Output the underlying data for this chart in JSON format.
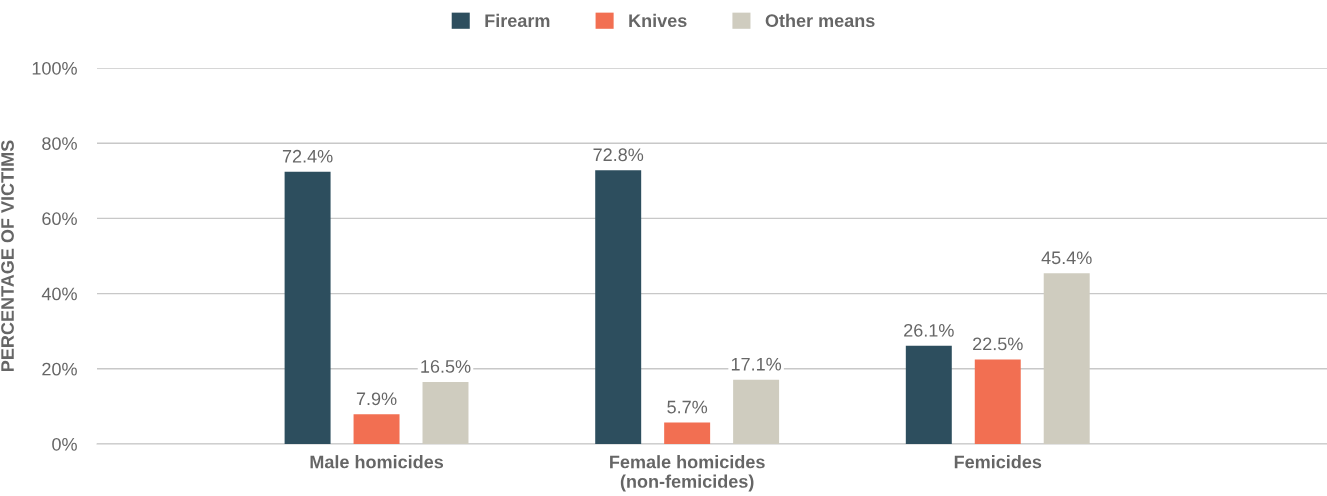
{
  "chart_data": {
    "type": "bar",
    "ylabel": "PERCENTAGE OF VICTIMS",
    "categories": [
      "Male homicides",
      "Female homicides\n(non-femicides)",
      "Femicides"
    ],
    "series": [
      {
        "name": "Firearm",
        "color": "#2d4e5e",
        "values": [
          72.4,
          72.8,
          26.1
        ],
        "value_labels": [
          "72.4%",
          "72.8%",
          "26.1%"
        ]
      },
      {
        "name": "Knives",
        "color": "#f26f52",
        "values": [
          7.9,
          5.7,
          22.5
        ],
        "value_labels": [
          "7.9%",
          "5.7%",
          "22.5%"
        ]
      },
      {
        "name": "Other means",
        "color": "#cfccbf",
        "values": [
          16.5,
          17.1,
          45.4
        ],
        "value_labels": [
          "16.5%",
          "17.1%",
          "45.4%"
        ]
      }
    ],
    "ylim": [
      0,
      100
    ],
    "yticks": [
      {
        "value": 0,
        "label": "0%"
      },
      {
        "value": 20,
        "label": "20%"
      },
      {
        "value": 40,
        "label": "40%"
      },
      {
        "value": 60,
        "label": "60%"
      },
      {
        "value": 80,
        "label": "80%"
      },
      {
        "value": 100,
        "label": "100%"
      }
    ],
    "grid": "y",
    "legend": "top"
  }
}
